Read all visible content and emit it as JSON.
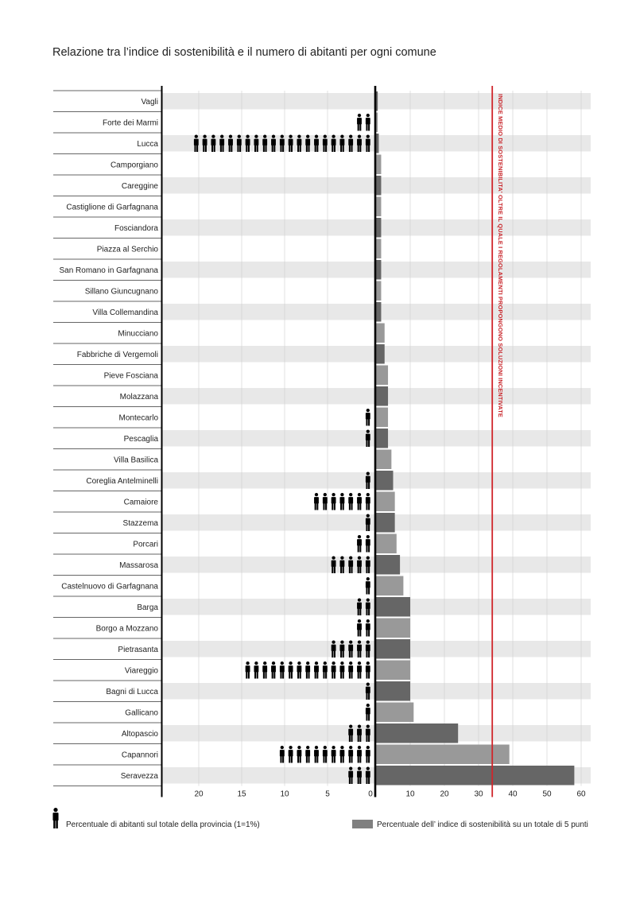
{
  "chart_data": {
    "type": "bar",
    "title": "Relazione tra l’indice di sostenibilità e il numero di abitanti per ogni comune",
    "categories": [
      "Vagli",
      "Forte dei Marmi",
      "Lucca",
      "Camporgiano",
      "Careggine",
      "Castiglione di Garfagnana",
      "Fosciandora",
      "Piazza al Serchio",
      "San Romano in Garfagnana",
      "Sillano Giuncugnano",
      "Villa Collemandina",
      "Minucciano",
      "Fabbriche di Vergemoli",
      "Pieve Fosciana",
      "Molazzana",
      "Montecarlo",
      "Pescaglia",
      "Villa Basilica",
      "Coreglia Antelminelli",
      "Camaiore",
      "Stazzema",
      "Porcari",
      "Massarosa",
      "Castelnuovo di Garfagnana",
      "Barga",
      "Borgo a Mozzano",
      "Pietrasanta",
      "Viareggio",
      "Bagni di Lucca",
      "Gallicano",
      "Altopascio",
      "Capannori",
      "Seravezza"
    ],
    "series": [
      {
        "name": "Percentuale di abitanti sul totale della provincia (1=1%)",
        "values": [
          0.3,
          2,
          21.8,
          0.4,
          0.4,
          0.4,
          0.4,
          0.4,
          0.4,
          0.4,
          0.4,
          0.4,
          0.4,
          0.4,
          0.4,
          1,
          1,
          0.5,
          1.5,
          7.5,
          1,
          2.2,
          5,
          1.5,
          2.2,
          2,
          5.5,
          15.5,
          1.5,
          1,
          3.5,
          11.5,
          3.2
        ]
      },
      {
        "name": "Percentuale dell’ indice di sostenibilità su un totale di 5 punti",
        "values": [
          0.5,
          0.5,
          0.8,
          1.5,
          1.5,
          1.5,
          1.5,
          1.5,
          1.5,
          1.5,
          1.5,
          2.5,
          2.5,
          3.5,
          3.5,
          3.5,
          3.5,
          4.5,
          5,
          5.5,
          5.5,
          6,
          7,
          8,
          10,
          10,
          10,
          10,
          10,
          11,
          24,
          39,
          58
        ]
      }
    ],
    "left_axis": {
      "ticks": [
        20,
        15,
        10,
        5,
        0
      ],
      "range": [
        0,
        25
      ]
    },
    "right_axis": {
      "ticks": [
        10,
        20,
        30,
        40,
        50,
        60
      ],
      "range": [
        0,
        62
      ]
    },
    "reference_line": {
      "value": 34,
      "label": "INDICE MEDIO DI SOSTENIBILITA' OLTRE IL QUALE I REGOLAMENTI PROPONGONO SOLUZIONI INCENTIVATE",
      "color": "#d0262b"
    },
    "legend": [
      {
        "label": "Percentuale di abitanti sul totale della provincia (1=1%)",
        "symbol": "person-icon"
      },
      {
        "label": "Percentuale dell’ indice di sostenibilità su un totale di 5 punti",
        "symbol": "gray-bar"
      }
    ],
    "colors": {
      "row_band": "#e8e8e8",
      "bar_dark": "#666666",
      "bar_light": "#999999",
      "icon": "#000000",
      "reference": "#d0262b"
    },
    "grid": true
  }
}
